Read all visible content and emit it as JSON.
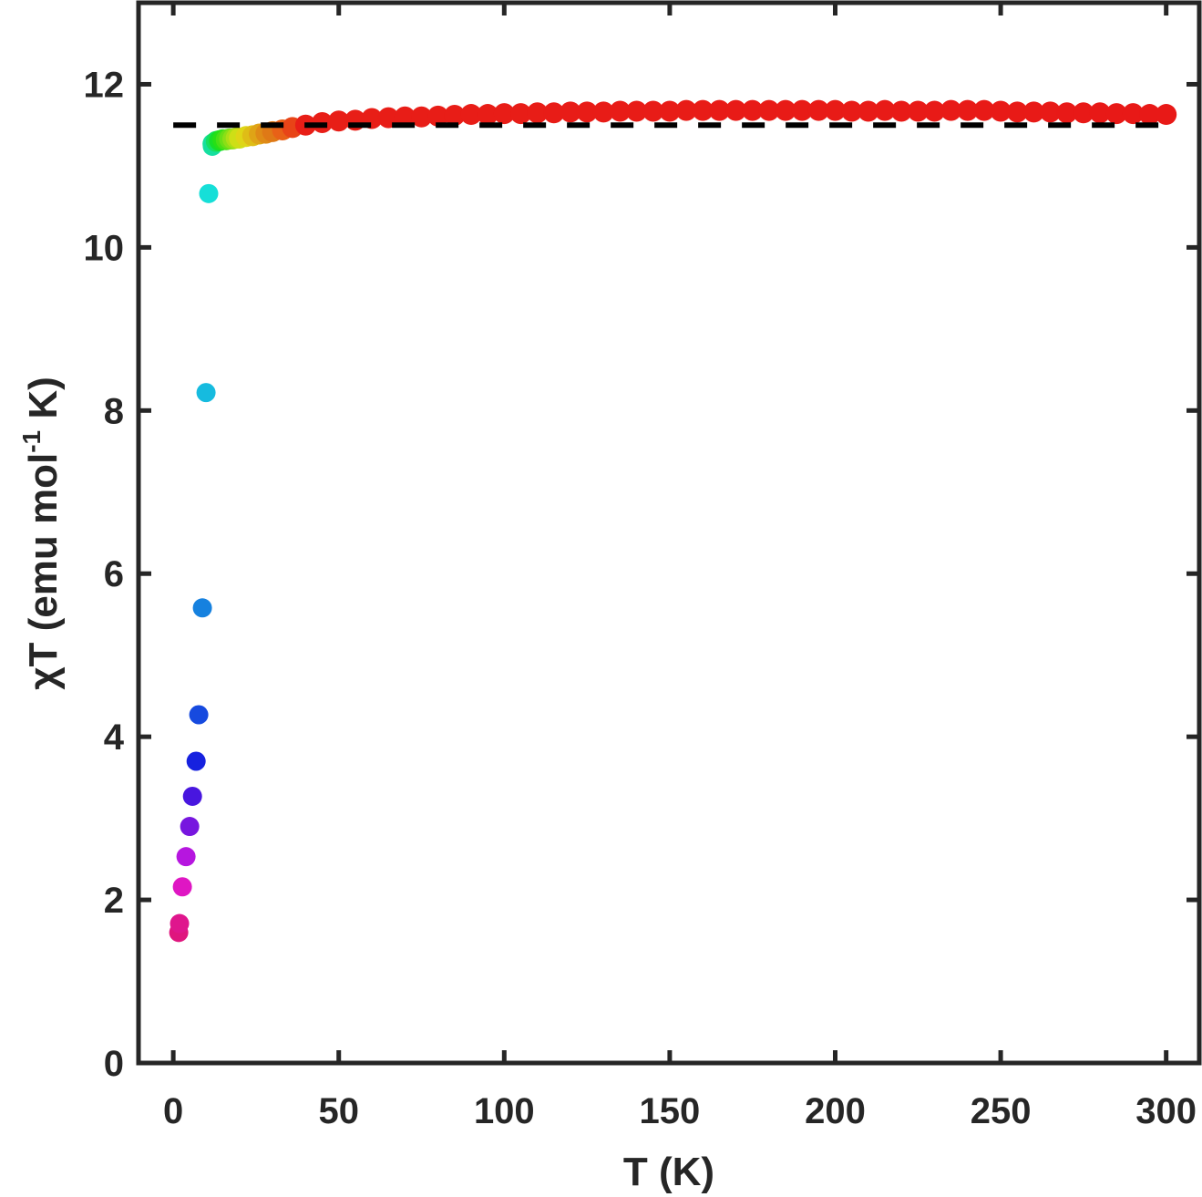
{
  "chart_data": {
    "type": "scatter",
    "title": "",
    "xlabel": "T (K)",
    "ylabel_main": "χT (emu mol",
    "ylabel_sup": "-1",
    "ylabel_end": " K)",
    "xlim": [
      -10.5,
      310
    ],
    "ylim": [
      0,
      13
    ],
    "xticks": [
      0,
      50,
      100,
      150,
      200,
      250,
      300
    ],
    "xtick_labels": [
      "0",
      "50",
      "100",
      "150",
      "200",
      "250",
      "300"
    ],
    "yticks": [
      0,
      2,
      4,
      6,
      8,
      10,
      12
    ],
    "ytick_labels": [
      "0",
      "2",
      "4",
      "6",
      "8",
      "10",
      "12"
    ],
    "grid": false,
    "reference_line": {
      "y": 11.5,
      "x_range": [
        0,
        300
      ],
      "style": "dashed",
      "color": "#000000"
    },
    "axis_color": "#262626",
    "color_map": "hsv-by-temperature (magenta to red)",
    "series": [
      {
        "name": "chiT",
        "x": [
          1.65,
          1.9,
          2.75,
          3.85,
          4.96,
          5.8,
          6.9,
          7.7,
          8.8,
          9.9,
          10.7,
          11.8,
          12,
          13,
          14,
          15,
          16,
          17,
          18,
          19,
          20,
          22,
          24,
          26,
          28,
          30,
          33,
          36,
          40,
          45,
          50,
          55,
          60,
          65,
          70,
          75,
          80,
          85,
          90,
          95,
          100,
          105,
          110,
          115,
          120,
          125,
          130,
          135,
          140,
          145,
          150,
          155,
          160,
          165,
          170,
          175,
          180,
          185,
          190,
          195,
          200,
          205,
          210,
          215,
          220,
          225,
          230,
          235,
          240,
          245,
          250,
          255,
          260,
          265,
          270,
          275,
          280,
          285,
          290,
          295,
          300
        ],
        "y": [
          1.6,
          1.71,
          2.16,
          2.53,
          2.9,
          3.27,
          3.7,
          4.27,
          5.58,
          8.22,
          10.66,
          11.24,
          11.27,
          11.3,
          11.31,
          11.32,
          11.32,
          11.33,
          11.33,
          11.34,
          11.34,
          11.36,
          11.37,
          11.39,
          11.4,
          11.42,
          11.44,
          11.47,
          11.5,
          11.53,
          11.55,
          11.56,
          11.58,
          11.59,
          11.6,
          11.6,
          11.61,
          11.62,
          11.63,
          11.63,
          11.64,
          11.64,
          11.65,
          11.65,
          11.66,
          11.66,
          11.66,
          11.67,
          11.67,
          11.67,
          11.67,
          11.68,
          11.68,
          11.68,
          11.68,
          11.68,
          11.68,
          11.68,
          11.68,
          11.68,
          11.68,
          11.67,
          11.67,
          11.68,
          11.67,
          11.67,
          11.67,
          11.68,
          11.68,
          11.68,
          11.67,
          11.66,
          11.66,
          11.66,
          11.65,
          11.65,
          11.65,
          11.64,
          11.64,
          11.63,
          11.63
        ]
      }
    ]
  }
}
